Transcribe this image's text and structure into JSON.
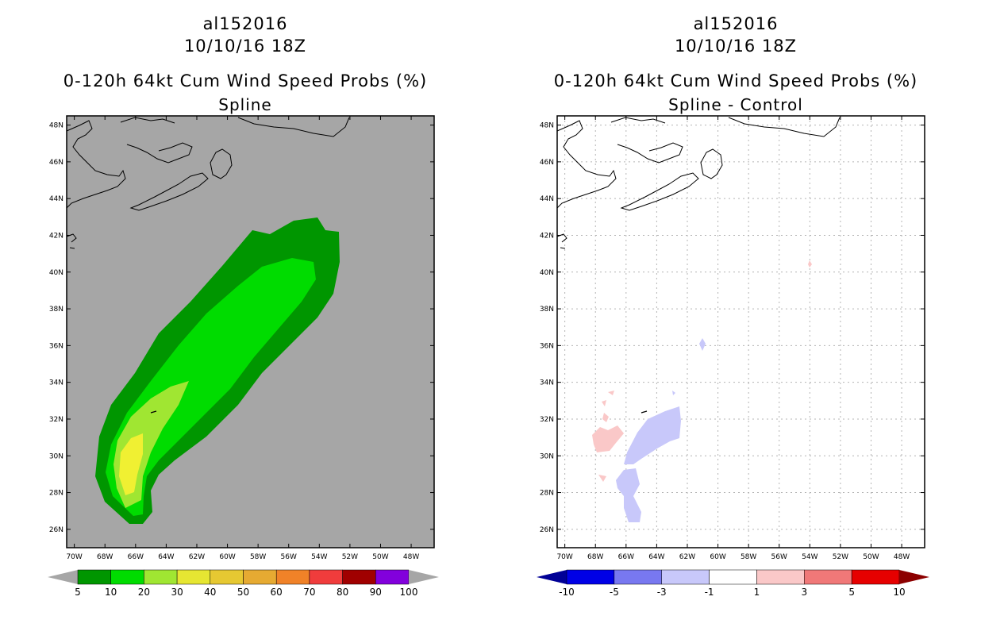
{
  "chart_data": [
    {
      "type": "filled-contour-map",
      "storm_id": "al152016",
      "datetime": "10/10/16 18Z",
      "title": "0-120h 64kt Cum Wind Speed Probs (%)",
      "subtitle": "Spline",
      "x_ticks": [
        "70W",
        "68W",
        "66W",
        "64W",
        "62W",
        "60W",
        "58W",
        "56W",
        "54W",
        "52W",
        "50W",
        "48W"
      ],
      "y_ticks": [
        "26N",
        "28N",
        "30N",
        "32N",
        "34N",
        "36N",
        "38N",
        "40N",
        "42N",
        "44N",
        "46N",
        "48N"
      ],
      "lon_range": [
        -70.5,
        -46.5
      ],
      "lat_range": [
        25,
        48.5
      ],
      "colorbar": {
        "labels": [
          "5",
          "10",
          "20",
          "30",
          "40",
          "50",
          "60",
          "70",
          "80",
          "90",
          "100"
        ],
        "colors": [
          "#009600",
          "#00dc00",
          "#a0e632",
          "#e6e632",
          "#e6c832",
          "#e6aa32",
          "#f08228",
          "#f03c3c",
          "#a00000",
          "#8200dc"
        ],
        "below_color": "#a6a6a6",
        "above_color": "#a6a6a6"
      },
      "max_probability_region": "30-40"
    },
    {
      "type": "filled-contour-map",
      "storm_id": "al152016",
      "datetime": "10/10/16 18Z",
      "title": "0-120h 64kt Cum Wind Speed Probs (%)",
      "subtitle": "Spline - Control",
      "x_ticks": [
        "70W",
        "68W",
        "66W",
        "64W",
        "62W",
        "60W",
        "58W",
        "56W",
        "54W",
        "52W",
        "50W",
        "48W"
      ],
      "y_ticks": [
        "26N",
        "28N",
        "30N",
        "32N",
        "34N",
        "36N",
        "38N",
        "40N",
        "42N",
        "44N",
        "46N",
        "48N"
      ],
      "lon_range": [
        -70.5,
        -46.5
      ],
      "lat_range": [
        25,
        48.5
      ],
      "grid": true,
      "colorbar": {
        "labels": [
          "-10",
          "-5",
          "-3",
          "-1",
          "1",
          "3",
          "5",
          "10"
        ],
        "colors": [
          "#0000e6",
          "#7878f0",
          "#c8c8fa",
          "#ffffff",
          "#fac8c8",
          "#f07878",
          "#e60000"
        ],
        "below_color": "#000096",
        "above_color": "#8c0000"
      }
    }
  ]
}
